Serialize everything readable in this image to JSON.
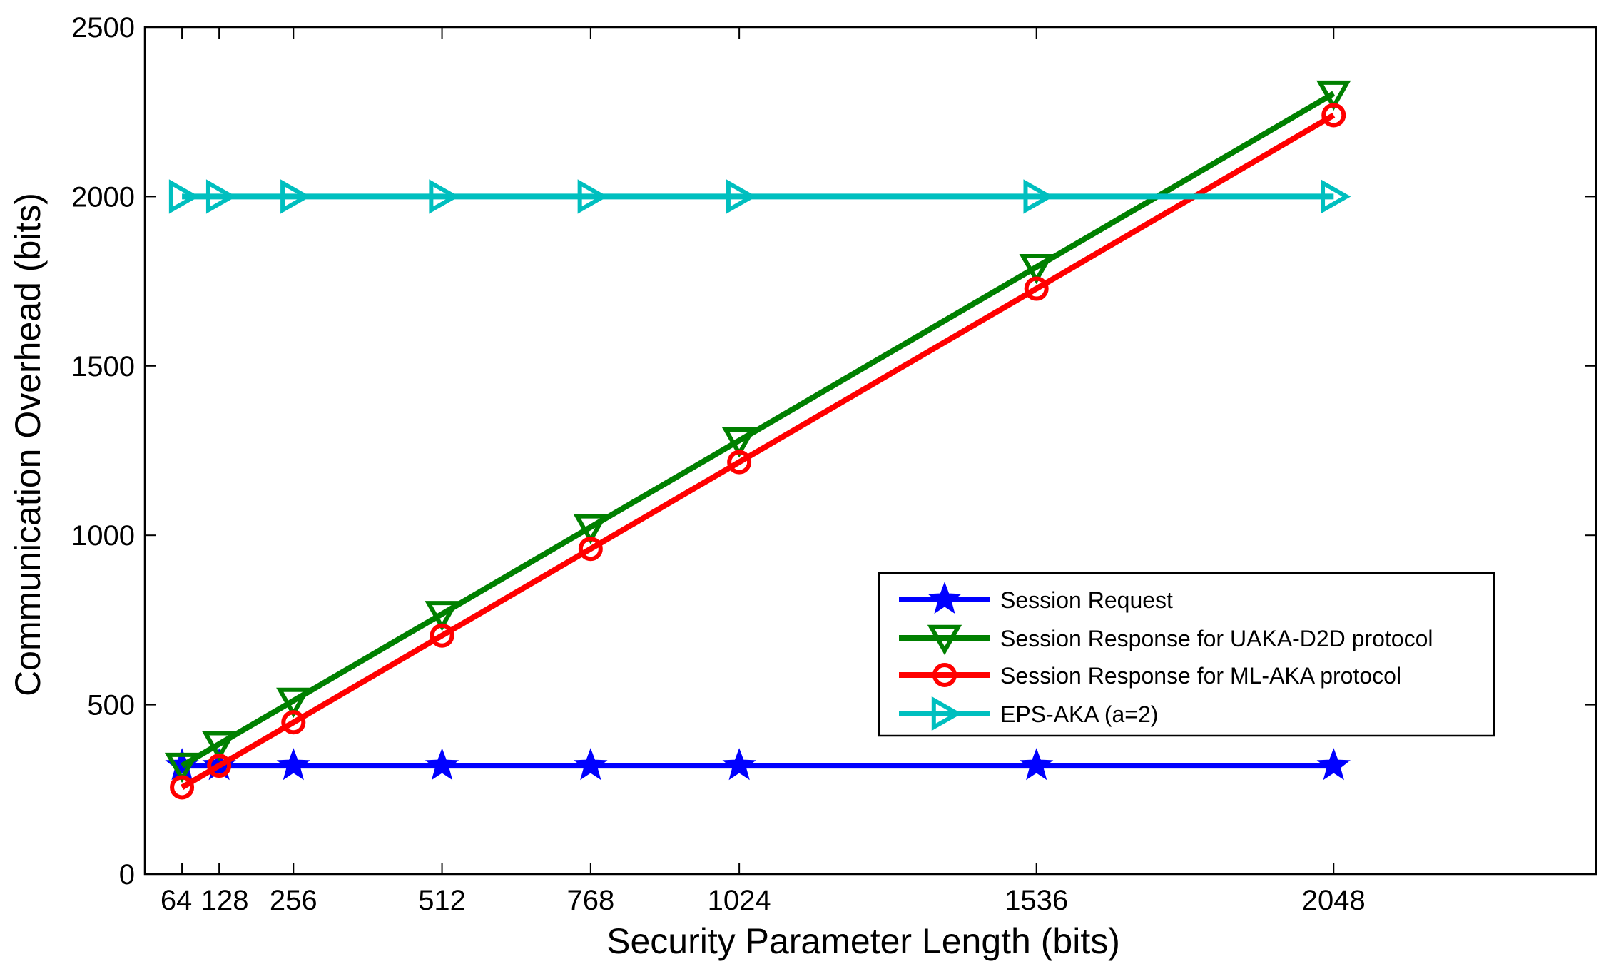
{
  "chart_data": {
    "type": "line",
    "title": "",
    "xlabel": "Security Parameter Length (bits)",
    "ylabel": "Communication Overhead (bits)",
    "x": [
      64,
      128,
      256,
      512,
      768,
      1024,
      1536,
      2048
    ],
    "xticks": [
      64,
      128,
      256,
      512,
      768,
      1024,
      1536,
      2048
    ],
    "xtick_labels": [
      "64",
      "128",
      "256",
      "512",
      "768",
      "1024",
      "1536",
      "2048"
    ],
    "yticks": [
      0,
      500,
      1000,
      1500,
      2000,
      2500
    ],
    "ytick_labels": [
      "0",
      "500",
      "1000",
      "1500",
      "2000",
      "2500"
    ],
    "xlim": [
      0,
      2500
    ],
    "ylim": [
      0,
      2500
    ],
    "grid": false,
    "legend_position": "lower-right",
    "series": [
      {
        "name": "Session Request",
        "color": "#0000ff",
        "marker": "star",
        "values": [
          320,
          320,
          320,
          320,
          320,
          320,
          320,
          320
        ]
      },
      {
        "name": "Session Response for UAKA-D2D protocol",
        "color": "#008000",
        "marker": "triangle-down",
        "values": [
          320,
          384,
          512,
          768,
          1024,
          1280,
          1792,
          2304
        ]
      },
      {
        "name": "Session Response for ML-AKA protocol",
        "color": "#ff0000",
        "marker": "circle",
        "values": [
          256,
          320,
          448,
          704,
          960,
          1216,
          1728,
          2240
        ]
      },
      {
        "name": "EPS-AKA (a=2)",
        "color": "#00bfbf",
        "marker": "triangle-right",
        "values": [
          2000,
          2000,
          2000,
          2000,
          2000,
          2000,
          2000,
          2000
        ]
      }
    ]
  }
}
